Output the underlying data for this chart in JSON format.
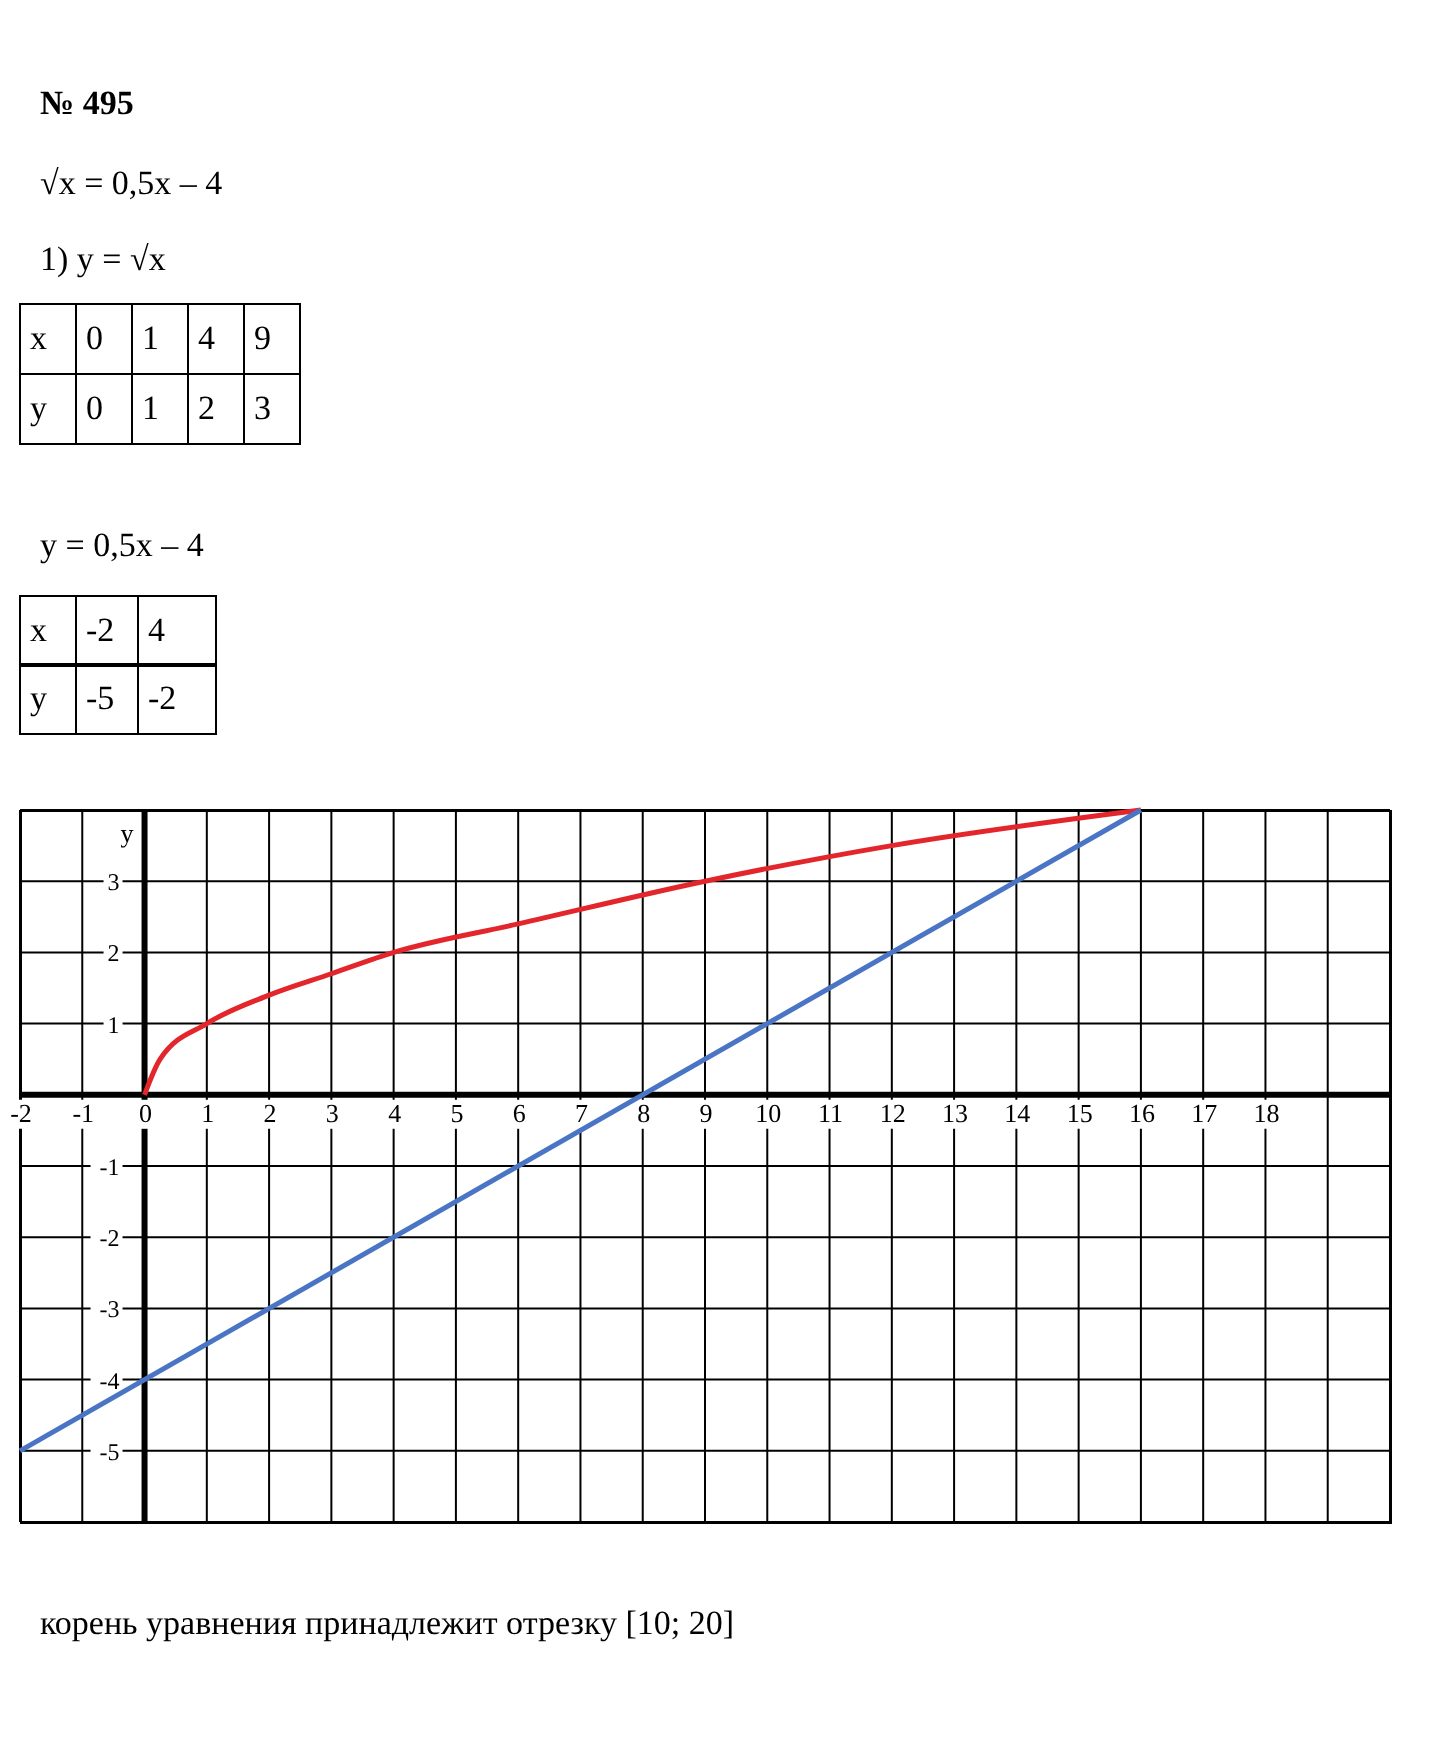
{
  "chart_data": {
    "type": "line",
    "title": "№ 495",
    "annotations": [
      "√x = 0,5x – 4",
      "1) y = √x",
      "x 0 1 4 9",
      "y 0 1 2 3",
      "y = 0,5x – 4",
      "x -2 4",
      "y -5 -2",
      "корень уравнения принадлежит отрезку [10; 20]"
    ],
    "ylabel": "y",
    "xlim": [
      -2,
      20
    ],
    "ylim": [
      -6,
      4
    ],
    "xticks": [
      -2,
      -1,
      0,
      1,
      2,
      3,
      4,
      5,
      6,
      7,
      8,
      9,
      10,
      11,
      12,
      13,
      14,
      15,
      16,
      17,
      18,
      {
        "value": 19,
        "label": null
      },
      {
        "value": 20,
        "label": null
      }
    ],
    "yticks": [
      {
        "value": -6,
        "label": null
      },
      -5,
      -4,
      -3,
      -2,
      -1,
      {
        "value": 0,
        "label": null
      },
      1,
      2,
      3,
      {
        "value": 4,
        "label": null
      }
    ],
    "grid": true,
    "series": [
      {
        "color": "#e3262b",
        "x": [
          0,
          0.25,
          1,
          2,
          3,
          4,
          6,
          9,
          12,
          16
        ],
        "values": [
          0,
          0.5,
          1,
          1.4,
          1.7,
          2,
          2.4,
          3,
          3.5,
          4
        ]
      },
      {
        "color": "#4a74c4",
        "x": [
          -2,
          16
        ],
        "values": [
          -5,
          4
        ]
      }
    ]
  }
}
